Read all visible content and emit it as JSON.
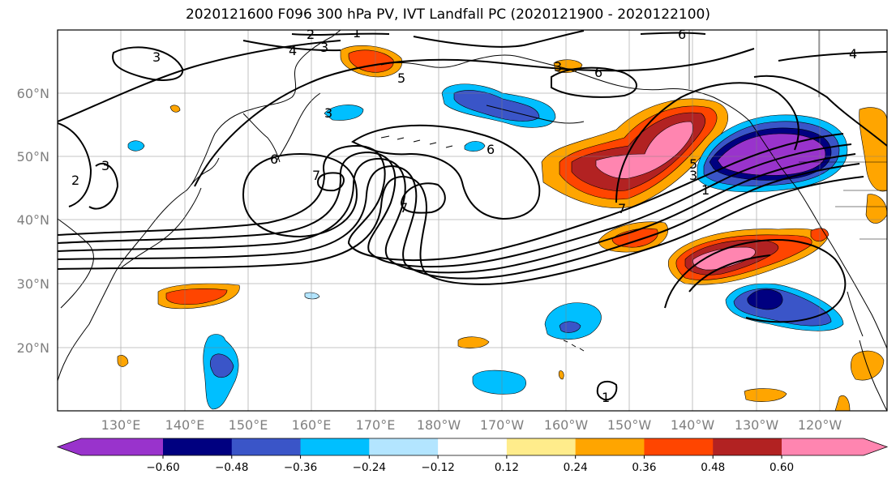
{
  "title": "2020121600 F096 300 hPa PV, IVT Landfall PC (2020121900 - 2020122100)",
  "lat_labels": [
    "60°N",
    "50°N",
    "40°N",
    "30°N",
    "20°N"
  ],
  "lon_labels": [
    "130°E",
    "140°E",
    "150°E",
    "160°E",
    "170°E",
    "180°W",
    "170°W",
    "160°W",
    "150°W",
    "140°W",
    "130°W",
    "120°W"
  ],
  "colorbar": {
    "colors": [
      "#9933cc",
      "#000080",
      "#3a55c8",
      "#00bfff",
      "#b3e5ff",
      "#ffffff",
      "#ffec8b",
      "#ffa500",
      "#ff4500",
      "#b22222",
      "#ff85b0"
    ],
    "tick_labels": [
      "−0.60",
      "−0.48",
      "−0.36",
      "−0.24",
      "−0.12",
      "0.12",
      "0.24",
      "0.36",
      "0.48",
      "0.60"
    ]
  },
  "contour_labels": [
    "1",
    "2",
    "3",
    "4",
    "5",
    "6",
    "7"
  ]
}
